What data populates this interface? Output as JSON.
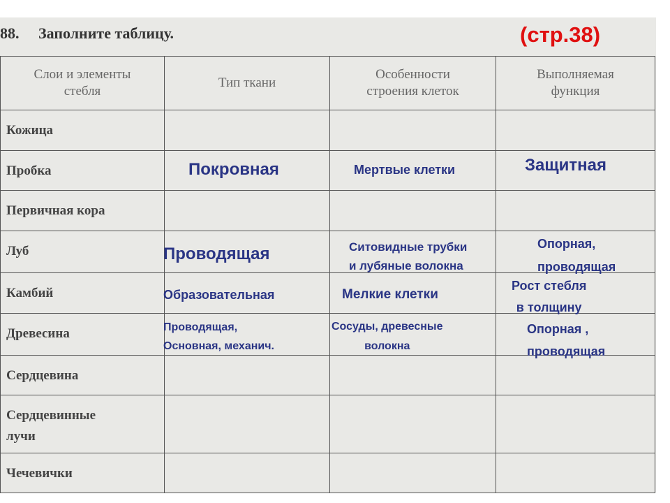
{
  "heading": {
    "number": "88.",
    "title": "Заполните таблицу.",
    "page_ref": "(стр.38)"
  },
  "table": {
    "header": [
      [
        "Слои и элементы",
        "стебля"
      ],
      [
        "Тип ткани"
      ],
      [
        "Особенности",
        "строения клеток"
      ],
      [
        "Выполняемая",
        "функция"
      ]
    ],
    "rows": [
      [
        "Кожица"
      ],
      [
        "Пробка"
      ],
      [
        "Первичная кора"
      ],
      [
        "Луб"
      ],
      [
        "Камбий"
      ],
      [
        "Древесина"
      ],
      [
        "Сердцевина"
      ],
      [
        "Сердцевинные",
        "лучи"
      ],
      [
        "Чечевички"
      ]
    ]
  },
  "annotations": [
    {
      "lines": [
        "Покровная"
      ]
    },
    {
      "lines": [
        "Мертвые клетки"
      ]
    },
    {
      "lines": [
        "Защитная"
      ]
    },
    {
      "lines": [
        "Проводящая"
      ]
    },
    {
      "lines": [
        "Ситовидные трубки",
        "и лубяные волокна"
      ]
    },
    {
      "lines": [
        "Опорная,",
        "проводящая"
      ]
    },
    {
      "lines": [
        "Образовательная"
      ]
    },
    {
      "lines": [
        "Мелкие клетки"
      ]
    },
    {
      "lines": [
        "Рост стебля",
        "в толщину"
      ]
    },
    {
      "lines": [
        "Проводящая,",
        "Основная, механич."
      ]
    },
    {
      "lines": [
        "Сосуды, древесные",
        "волокна"
      ]
    },
    {
      "lines": [
        "Опорная ,",
        "проводящая"
      ]
    }
  ]
}
